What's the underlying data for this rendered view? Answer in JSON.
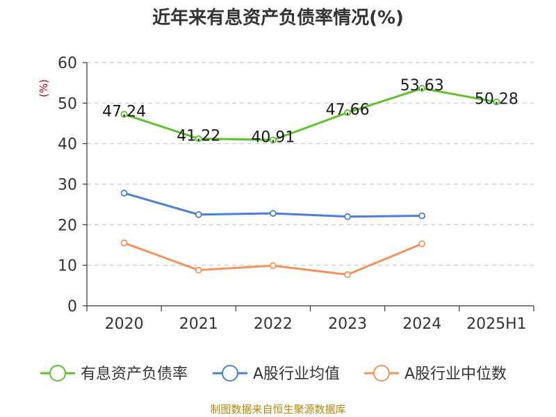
{
  "chart_data": {
    "type": "line",
    "title": "近年来有息资产负债率情况(%)",
    "ylabel": "(%)",
    "xlabel": "",
    "categories": [
      "2020",
      "2021",
      "2022",
      "2023",
      "2024",
      "2025H1"
    ],
    "ylim": [
      0,
      60
    ],
    "yticks": [
      "0",
      "10",
      "20",
      "30",
      "40",
      "50",
      "60"
    ],
    "grid": true,
    "legend_position": "bottom",
    "series": [
      {
        "name": "有息资产负债率",
        "color": "#5cc22a",
        "values": [
          47.24,
          41.22,
          40.91,
          47.66,
          53.63,
          50.28
        ],
        "labels": [
          "47.24",
          "41.22",
          "40.91",
          "47.66",
          "53.63",
          "50.28"
        ]
      },
      {
        "name": "A股行业均值",
        "color": "#4a7fd6",
        "values": [
          27.8,
          22.5,
          22.8,
          22.0,
          22.2,
          null
        ]
      },
      {
        "name": "A股行业中位数",
        "color": "#f5915a",
        "values": [
          15.5,
          8.8,
          9.9,
          7.7,
          15.3,
          null
        ]
      }
    ],
    "source": "制图数据来自恒生聚源数据库"
  }
}
